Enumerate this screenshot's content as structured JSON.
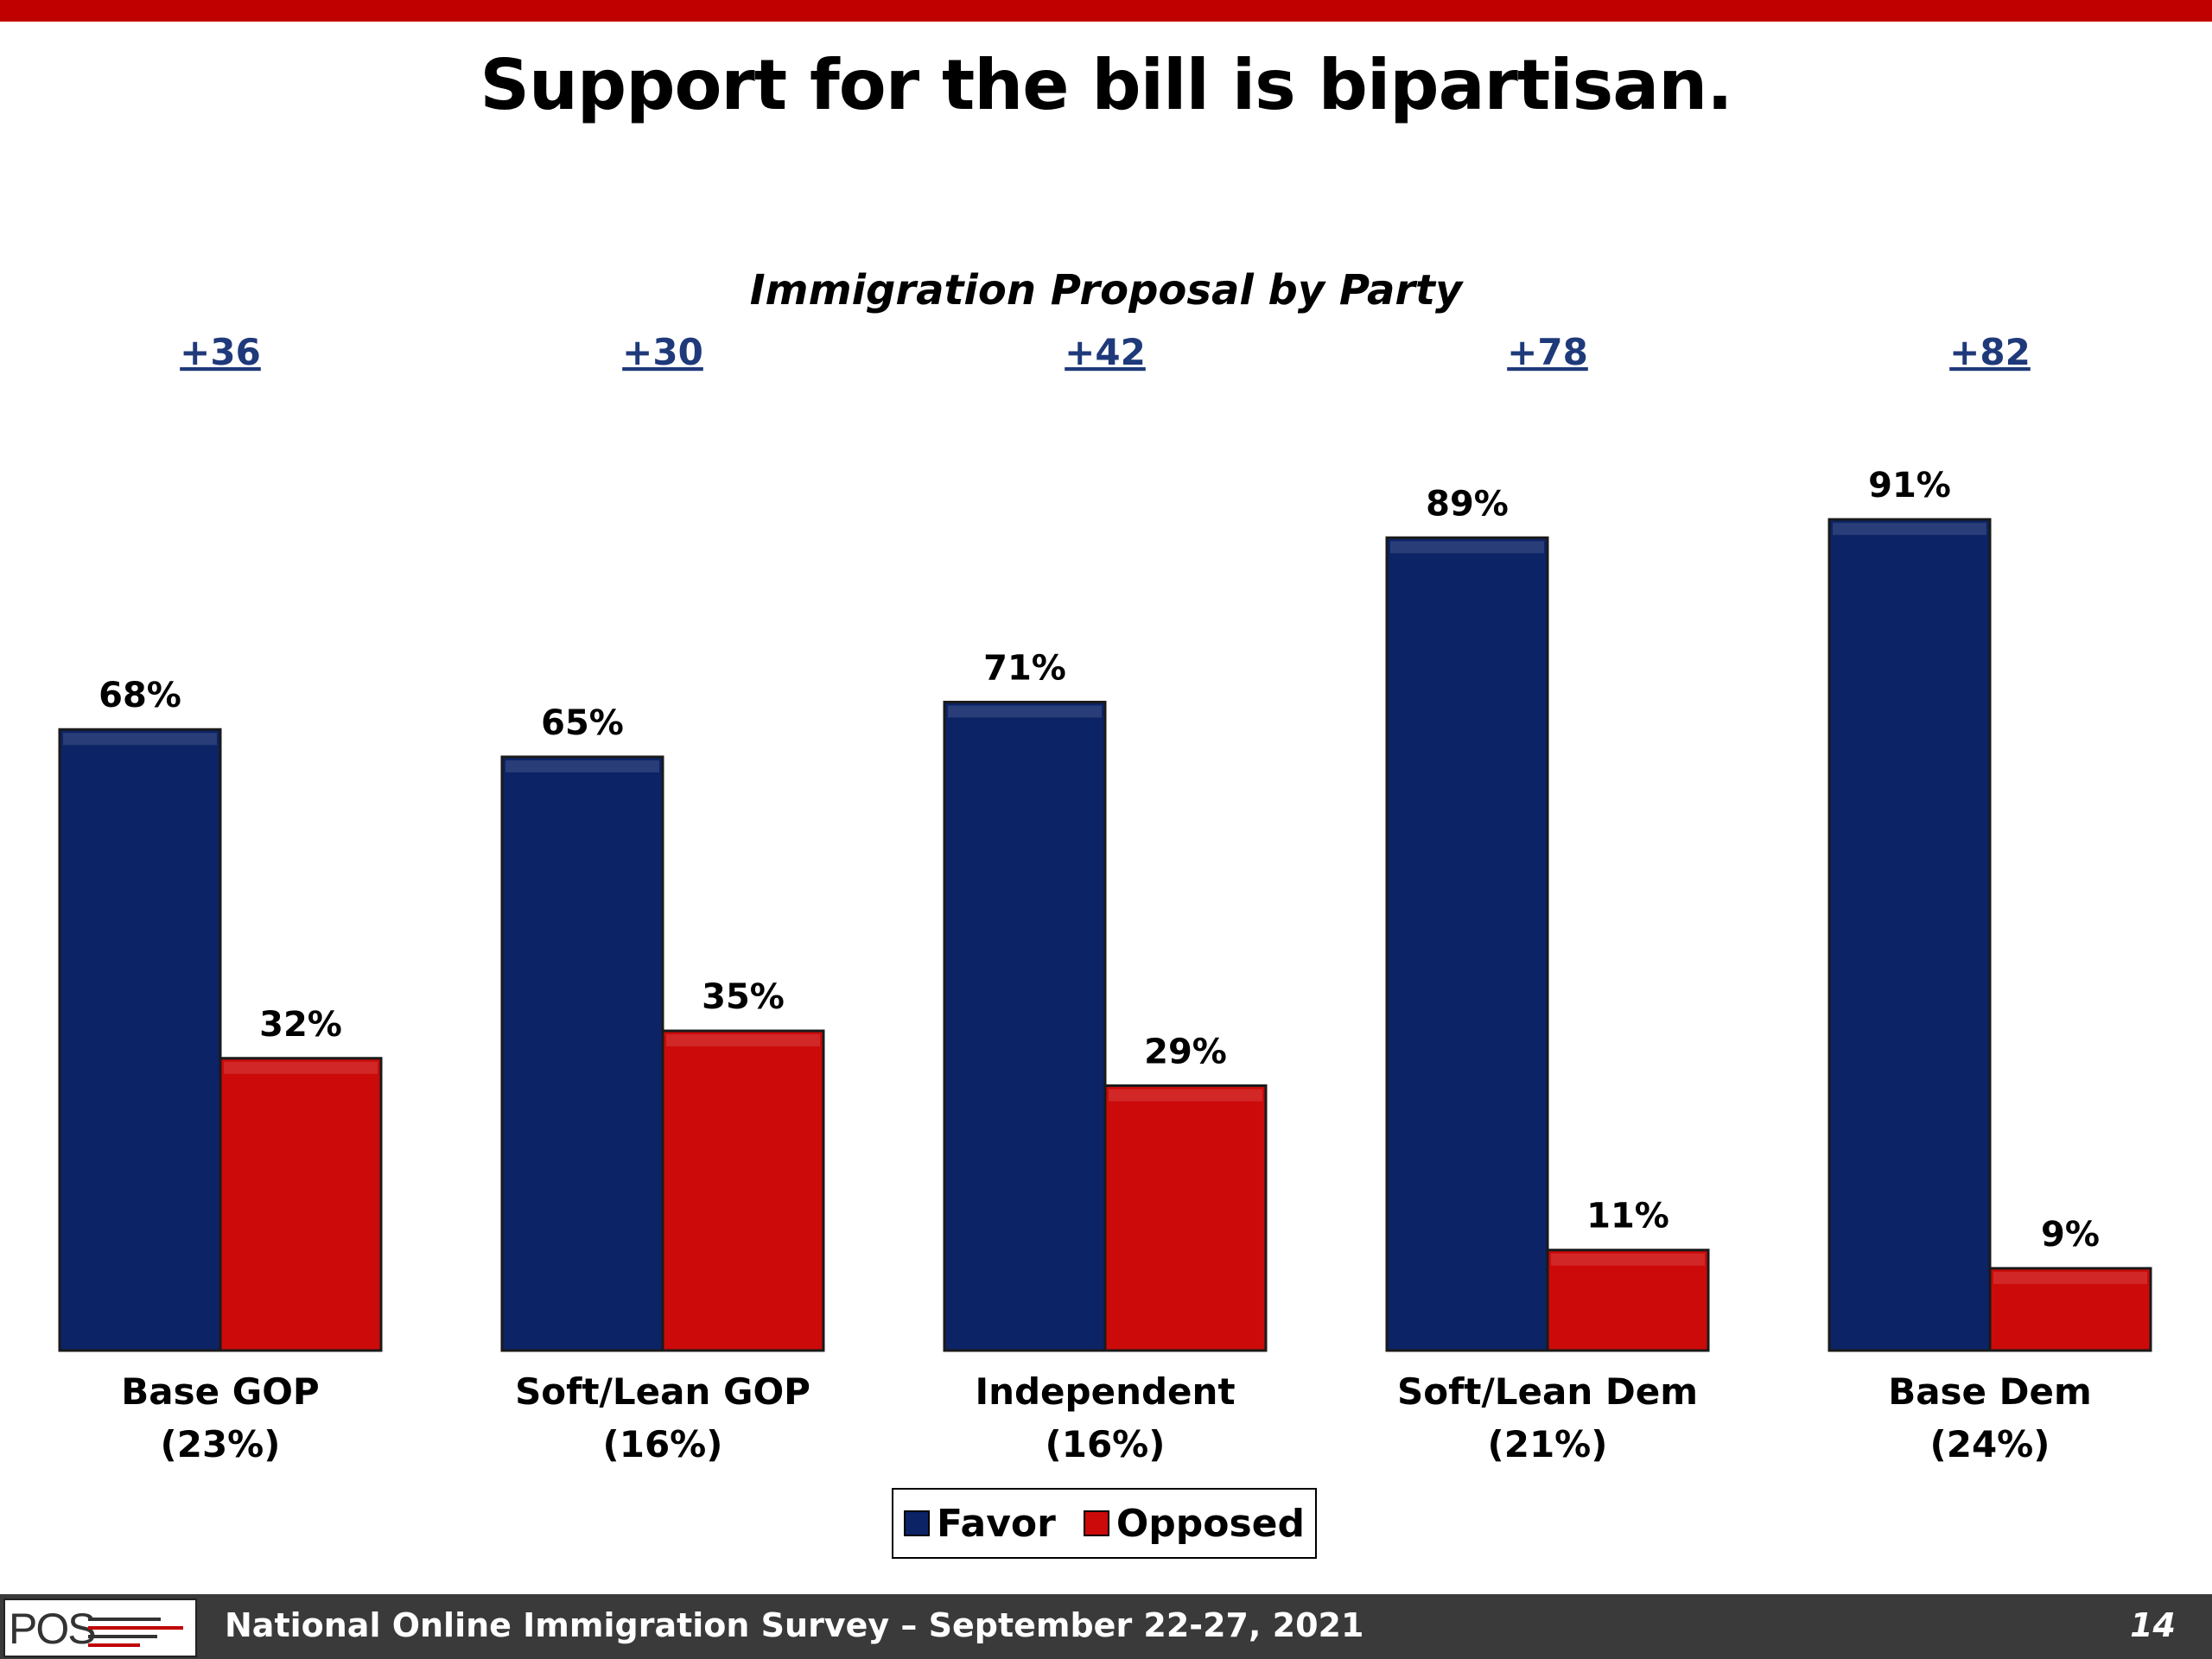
{
  "slide": {
    "title": "Support for the bill is bipartisan.",
    "page_number": "14",
    "footer_text": "National Online Immigration Survey – September 22-27, 2021",
    "logo_text": "POS"
  },
  "colors": {
    "favor": "#0c2366",
    "opposed": "#cc0a0a",
    "top_bar": "#c00000",
    "net_label": "#1f3a7a"
  },
  "chart_data": {
    "type": "bar",
    "title": "Immigration Proposal by Party",
    "categories": [
      "Base GOP",
      "Soft/Lean GOP",
      "Independent",
      "Soft/Lean Dem",
      "Base Dem"
    ],
    "category_shares": [
      "(23%)",
      "(16%)",
      "(16%)",
      "(21%)",
      "(24%)"
    ],
    "net_labels": [
      "+36",
      "+30",
      "+42",
      "+78",
      "+82"
    ],
    "series": [
      {
        "name": "Favor",
        "values": [
          68,
          65,
          71,
          89,
          91
        ],
        "labels": [
          "68%",
          "65%",
          "71%",
          "89%",
          "91%"
        ]
      },
      {
        "name": "Opposed",
        "values": [
          32,
          35,
          29,
          11,
          9
        ],
        "labels": [
          "32%",
          "35%",
          "29%",
          "11%",
          "9%"
        ]
      }
    ],
    "ylim": [
      0,
      100
    ],
    "grid": false,
    "legend": "bottom-center",
    "value_unit": "%"
  }
}
